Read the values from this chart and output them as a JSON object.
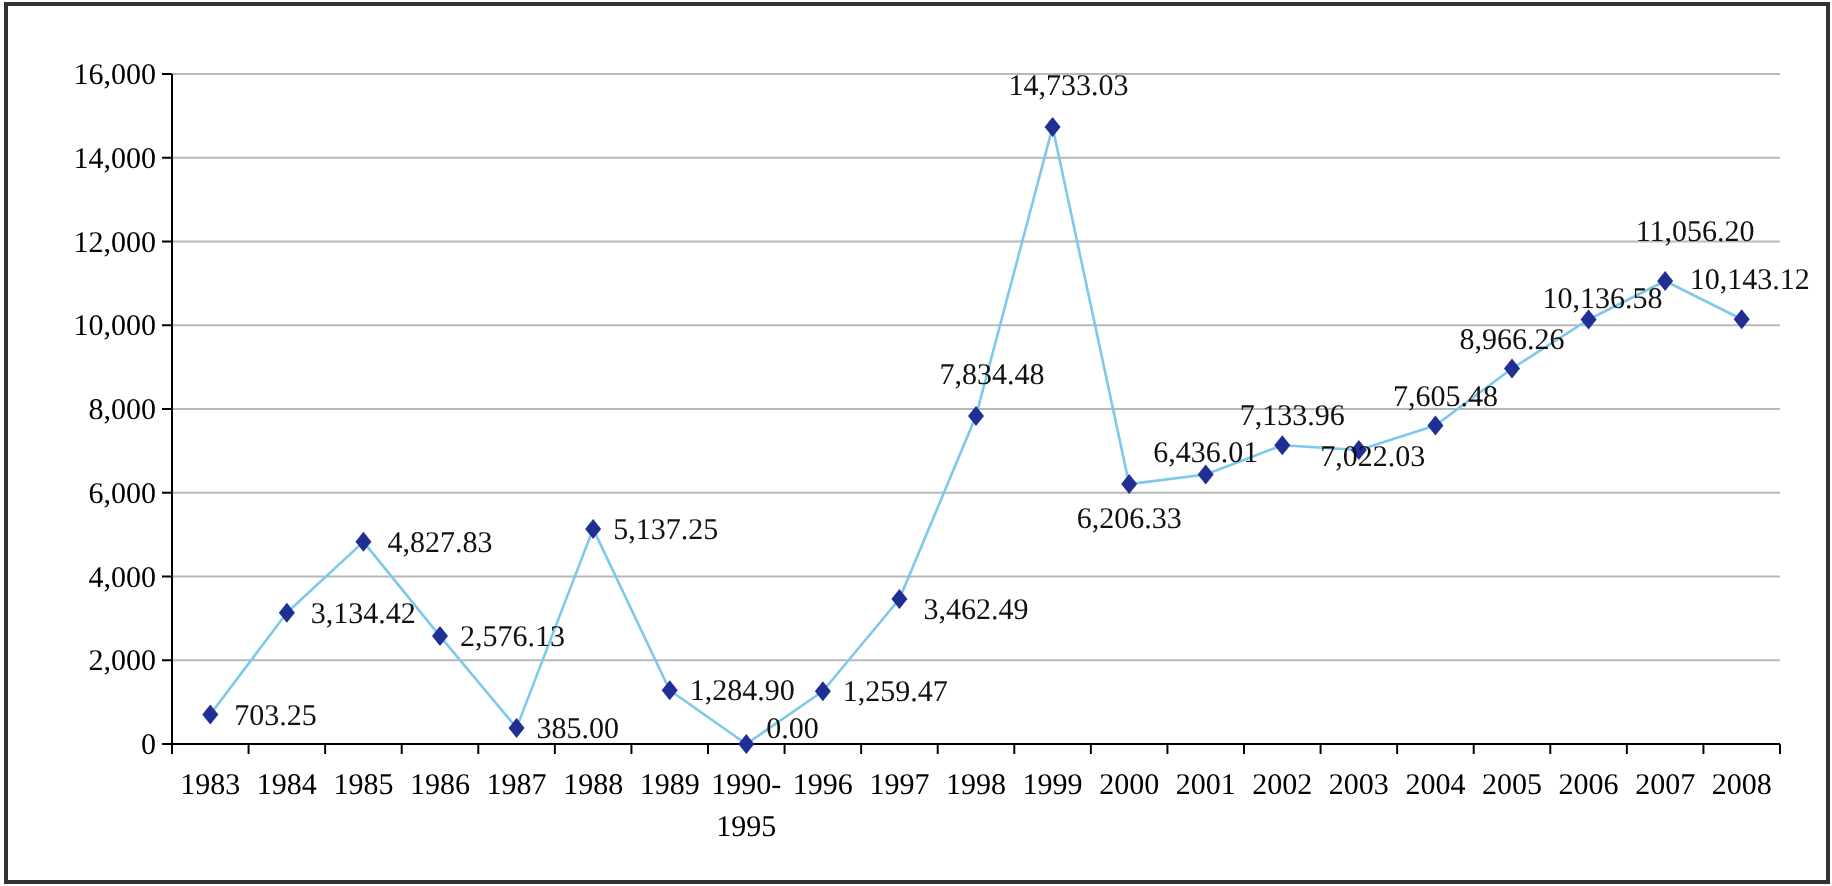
{
  "chart_data": {
    "type": "line",
    "categories": [
      "1983",
      "1984",
      "1985",
      "1986",
      "1987",
      "1988",
      "1989",
      "1990- 1995",
      "1996",
      "1997",
      "1998",
      "1999",
      "2000",
      "2001",
      "2002",
      "2003",
      "2004",
      "2005",
      "2006",
      "2007",
      "2008"
    ],
    "series": [
      {
        "color": "#7ec8ec",
        "values": [
          703.25,
          3134.42,
          4827.83,
          2576.13,
          385.0,
          5137.25,
          1284.9,
          0.0,
          1259.47,
          3462.49,
          7834.48,
          14733.03,
          6206.33,
          6436.01,
          7133.96,
          7022.03,
          7605.48,
          8966.26,
          10136.58,
          11056.2,
          10143.12
        ],
        "value_labels": [
          "703.25",
          "3,134.42",
          "4,827.83",
          "2,576.13",
          "385.00",
          "5,137.25",
          "1,284.90",
          "0.00",
          "1,259.47",
          "3,462.49",
          "7,834.48",
          "14,733.03",
          "6,206.33",
          "6,436.01",
          "7,133.96",
          "7,022.03",
          "7,605.48",
          "8,966.26",
          "10,136.58",
          "11,056.20",
          "10,143.12"
        ],
        "colors": [
          "#1f2f94",
          "#1f2f94",
          "#1f2f94",
          "#1f2f94",
          "#1f2f94",
          "#1f2f94",
          "#1f2f94",
          "#1f2f94",
          "#1f2f94",
          "#1f2f94",
          "#1f2f94",
          "#1f2f94",
          "#1f2f94",
          "#1f2f94",
          "#1f2f94",
          "#1f2f94",
          "#1f2f94",
          "#1f2f94",
          "#1f2f94",
          "#1f2f94",
          "#1f2f94"
        ]
      }
    ],
    "marker": "diamond",
    "line_style": "solid",
    "ylim": [
      0,
      16000
    ],
    "yticks": [
      {
        "value": 0,
        "label": "0"
      },
      {
        "value": 2000,
        "label": "2,000"
      },
      {
        "value": 4000,
        "label": "4,000"
      },
      {
        "value": 6000,
        "label": "6,000"
      },
      {
        "value": 8000,
        "label": "8,000"
      },
      {
        "value": 10000,
        "label": "10,000"
      },
      {
        "value": 12000,
        "label": "12,000"
      },
      {
        "value": 14000,
        "label": "14,000"
      },
      {
        "value": 16000,
        "label": "16,000"
      }
    ],
    "grid": "y"
  }
}
